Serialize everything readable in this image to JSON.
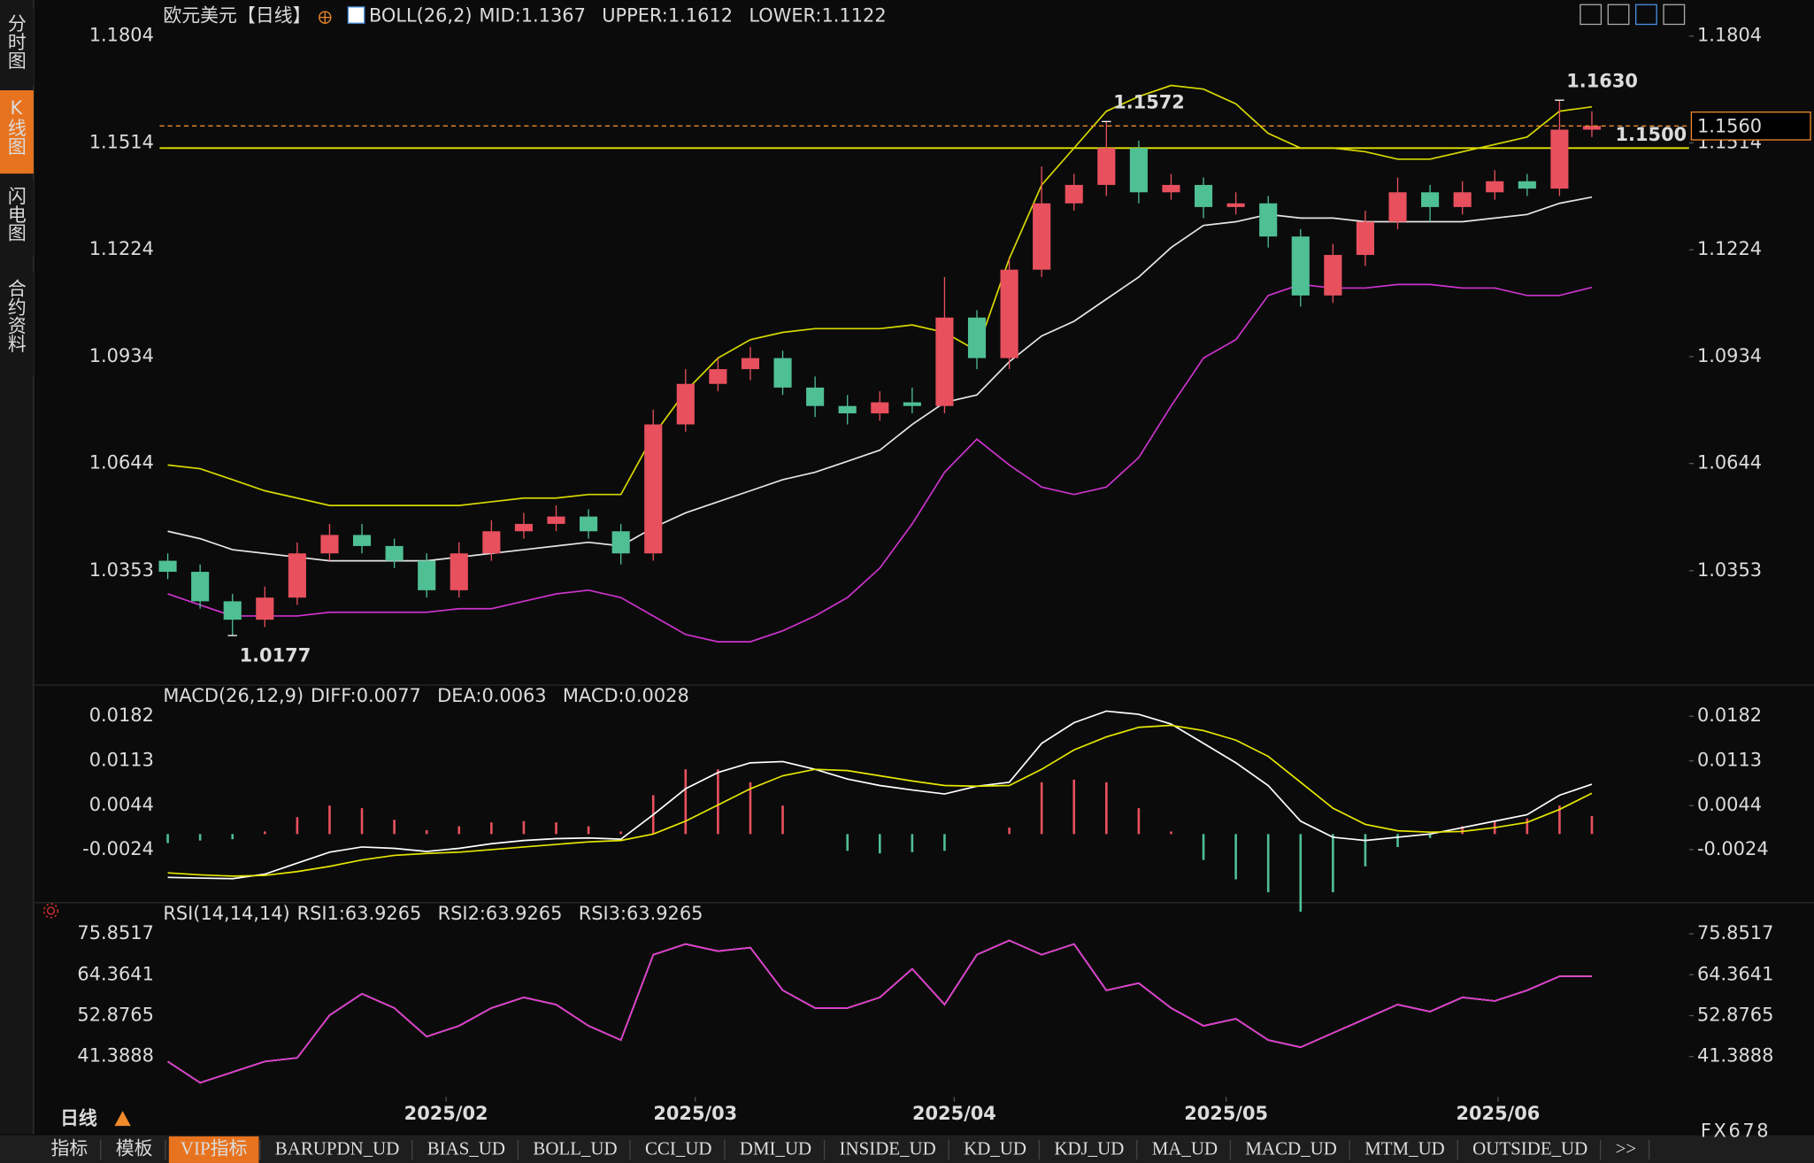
{
  "ui": {
    "sidebar": [
      "分时图",
      "K线图",
      "闪电图",
      "合约资料"
    ],
    "sidebar_active": 1,
    "period": "日线",
    "brand": "FX678",
    "tabs": [
      "指标",
      "模板",
      "VIP指标",
      "BARUPDN_UD",
      "BIAS_UD",
      "BOLL_UD",
      "CCI_UD",
      "DMI_UD",
      "INSIDE_UD",
      "KD_UD",
      "KDJ_UD",
      "MA_UD",
      "MACD_UD",
      "MTM_UD",
      "OUTSIDE_UD",
      ">>"
    ],
    "tab_active": 2
  },
  "chart_data": [
    {
      "type": "candlestick",
      "title": "欧元美元",
      "period": "【日线】",
      "indicator": "BOLL(26,2)",
      "up_color": "#e8505e",
      "down_color": "#4fbf94",
      "open": [
        1.038,
        1.035,
        1.027,
        1.022,
        1.028,
        1.04,
        1.045,
        1.042,
        1.038,
        1.03,
        1.04,
        1.046,
        1.048,
        1.05,
        1.046,
        1.04,
        1.075,
        1.086,
        1.09,
        1.093,
        1.085,
        1.08,
        1.078,
        1.081,
        1.08,
        1.104,
        1.093,
        1.117,
        1.135,
        1.14,
        1.15,
        1.138,
        1.14,
        1.134,
        1.135,
        1.126,
        1.11,
        1.121,
        1.13,
        1.138,
        1.134,
        1.138,
        1.141,
        1.139,
        1.155
      ],
      "high": [
        1.04,
        1.037,
        1.029,
        1.031,
        1.043,
        1.048,
        1.048,
        1.044,
        1.04,
        1.043,
        1.049,
        1.051,
        1.053,
        1.052,
        1.048,
        1.079,
        1.09,
        1.093,
        1.096,
        1.095,
        1.088,
        1.083,
        1.084,
        1.085,
        1.115,
        1.106,
        1.12,
        1.145,
        1.143,
        1.1572,
        1.152,
        1.143,
        1.142,
        1.138,
        1.137,
        1.128,
        1.124,
        1.133,
        1.142,
        1.14,
        1.141,
        1.144,
        1.143,
        1.163,
        1.16
      ],
      "low": [
        1.033,
        1.025,
        1.0177,
        1.02,
        1.026,
        1.038,
        1.04,
        1.036,
        1.028,
        1.028,
        1.038,
        1.044,
        1.046,
        1.044,
        1.037,
        1.038,
        1.073,
        1.084,
        1.087,
        1.083,
        1.077,
        1.075,
        1.076,
        1.078,
        1.078,
        1.09,
        1.09,
        1.115,
        1.133,
        1.137,
        1.135,
        1.136,
        1.131,
        1.132,
        1.123,
        1.107,
        1.108,
        1.118,
        1.128,
        1.13,
        1.132,
        1.136,
        1.137,
        1.137,
        1.153
      ],
      "close": [
        1.035,
        1.027,
        1.022,
        1.028,
        1.04,
        1.045,
        1.042,
        1.038,
        1.03,
        1.04,
        1.046,
        1.048,
        1.05,
        1.046,
        1.04,
        1.075,
        1.086,
        1.09,
        1.093,
        1.085,
        1.08,
        1.078,
        1.081,
        1.08,
        1.104,
        1.093,
        1.117,
        1.135,
        1.14,
        1.15,
        1.138,
        1.14,
        1.134,
        1.135,
        1.126,
        1.11,
        1.121,
        1.13,
        1.138,
        1.134,
        1.138,
        1.141,
        1.139,
        1.155,
        1.156
      ],
      "series": [
        {
          "name": "MID:1.1367",
          "color": "#e6e6e6",
          "values": [
            1.046,
            1.044,
            1.041,
            1.04,
            1.039,
            1.038,
            1.038,
            1.038,
            1.038,
            1.039,
            1.04,
            1.041,
            1.042,
            1.043,
            1.042,
            1.047,
            1.051,
            1.054,
            1.057,
            1.06,
            1.062,
            1.065,
            1.068,
            1.075,
            1.081,
            1.083,
            1.092,
            1.099,
            1.103,
            1.109,
            1.115,
            1.123,
            1.129,
            1.13,
            1.132,
            1.131,
            1.131,
            1.13,
            1.13,
            1.13,
            1.13,
            1.131,
            1.132,
            1.135,
            1.1367
          ]
        },
        {
          "name": "UPPER:1.1612",
          "color": "#d8d800",
          "values": [
            1.064,
            1.063,
            1.06,
            1.057,
            1.055,
            1.053,
            1.053,
            1.053,
            1.053,
            1.053,
            1.054,
            1.055,
            1.055,
            1.056,
            1.056,
            1.072,
            1.084,
            1.093,
            1.098,
            1.1,
            1.101,
            1.101,
            1.101,
            1.102,
            1.1,
            1.095,
            1.12,
            1.14,
            1.15,
            1.16,
            1.164,
            1.167,
            1.166,
            1.162,
            1.154,
            1.15,
            1.15,
            1.149,
            1.147,
            1.147,
            1.149,
            1.151,
            1.153,
            1.16,
            1.1612
          ]
        },
        {
          "name": "LOWER:1.1122",
          "color": "#cc33cc",
          "values": [
            1.029,
            1.026,
            1.023,
            1.023,
            1.023,
            1.024,
            1.024,
            1.024,
            1.024,
            1.025,
            1.025,
            1.027,
            1.029,
            1.03,
            1.028,
            1.023,
            1.018,
            1.016,
            1.016,
            1.019,
            1.023,
            1.028,
            1.036,
            1.048,
            1.062,
            1.071,
            1.064,
            1.058,
            1.056,
            1.058,
            1.066,
            1.08,
            1.093,
            1.098,
            1.11,
            1.113,
            1.112,
            1.112,
            1.113,
            1.113,
            1.112,
            1.112,
            1.11,
            1.11,
            1.1122
          ]
        }
      ],
      "annotations": [
        {
          "x": 29,
          "at": "high",
          "label": "1.1572",
          "color": "#e8505e"
        },
        {
          "x": 2,
          "at": "low",
          "label": "1.0177",
          "color": "#4fbf94"
        },
        {
          "x": 43,
          "at": "high",
          "label": "1.1630",
          "color": "#e8505e"
        }
      ],
      "hlines": [
        {
          "value": 1.15,
          "label": "1.1500",
          "color": "#e6e600"
        }
      ],
      "last_label": "1.1560",
      "last_color": "#f08a2a",
      "xlim": [
        0,
        44
      ],
      "ylim": [
        1.0096,
        1.1839
      ],
      "yticks": [
        1.1804,
        1.1514,
        1.1224,
        1.0934,
        1.0644,
        1.0353
      ]
    },
    {
      "type": "macd",
      "title": "MACD(26,12,9)",
      "series": [
        {
          "name": "DIFF:0.0077",
          "color": "#ffffff",
          "style": "line",
          "values": [
            -0.0067,
            -0.0068,
            -0.0069,
            -0.0062,
            -0.0045,
            -0.0028,
            -0.002,
            -0.0022,
            -0.0027,
            -0.0022,
            -0.0015,
            -0.001,
            -0.0007,
            -0.0006,
            -0.0008,
            0.003,
            0.007,
            0.0095,
            0.011,
            0.0112,
            0.01,
            0.0085,
            0.0075,
            0.0068,
            0.0062,
            0.0074,
            0.008,
            0.014,
            0.0172,
            0.019,
            0.0185,
            0.017,
            0.014,
            0.011,
            0.0075,
            0.002,
            -0.0005,
            -0.001,
            -0.0005,
            0,
            0.001,
            0.002,
            0.003,
            0.006,
            0.0077
          ]
        },
        {
          "name": "DEA:0.0063",
          "color": "#e6e600",
          "style": "line",
          "values": [
            -0.006,
            -0.0063,
            -0.0065,
            -0.0064,
            -0.0058,
            -0.005,
            -0.004,
            -0.0033,
            -0.003,
            -0.0028,
            -0.0024,
            -0.002,
            -0.0016,
            -0.0012,
            -0.001,
            0,
            0.002,
            0.0045,
            0.007,
            0.009,
            0.01,
            0.0098,
            0.009,
            0.0082,
            0.0075,
            0.0074,
            0.0075,
            0.01,
            0.013,
            0.015,
            0.0165,
            0.0168,
            0.016,
            0.0145,
            0.012,
            0.008,
            0.004,
            0.0015,
            0.0005,
            0.0003,
            0.0004,
            0.001,
            0.0018,
            0.0038,
            0.0063
          ]
        },
        {
          "name": "MACD:0.0028",
          "color": "#cc33cc",
          "style": "bar",
          "up_color": "#e8505e",
          "down_color": "#4fbf94",
          "values": [
            -0.0014,
            -0.001,
            -0.0008,
            0.0004,
            0.0026,
            0.0044,
            0.004,
            0.0022,
            0.0006,
            0.0012,
            0.0018,
            0.002,
            0.0018,
            0.0012,
            0.0004,
            0.006,
            0.01,
            0.01,
            0.008,
            0.0044,
            0,
            -0.0026,
            -0.003,
            -0.0028,
            -0.0026,
            0,
            0.001,
            0.008,
            0.0084,
            0.008,
            0.004,
            0.0004,
            -0.004,
            -0.007,
            -0.009,
            -0.012,
            -0.009,
            -0.005,
            -0.002,
            -0.0006,
            0.0012,
            0.002,
            0.0024,
            0.0044,
            0.0028
          ]
        }
      ],
      "xlim": [
        0,
        44
      ],
      "ylim": [
        -0.0097,
        0.0198
      ],
      "yticks": [
        0.0182,
        0.0113,
        0.0044,
        -0.0024
      ]
    },
    {
      "type": "line",
      "title": "RSI(14,14,14)",
      "series": [
        {
          "name": "RSI1:63.9265",
          "color": "#ffffff",
          "values": [
            40,
            34,
            37,
            40,
            41,
            53,
            59,
            55,
            47,
            50,
            55,
            58,
            56,
            50,
            46,
            70,
            73,
            71,
            72,
            60,
            55,
            55,
            58,
            66,
            56,
            70,
            74,
            70,
            73,
            60,
            62,
            55,
            50,
            52,
            46,
            44,
            48,
            52,
            56,
            54,
            58,
            57,
            60,
            63.93,
            63.9265
          ]
        },
        {
          "name": "RSI2:63.9265",
          "color": "#e6e600",
          "values": [
            40,
            34,
            37,
            40,
            41,
            53,
            59,
            55,
            47,
            50,
            55,
            58,
            56,
            50,
            46,
            70,
            73,
            71,
            72,
            60,
            55,
            55,
            58,
            66,
            56,
            70,
            74,
            70,
            73,
            60,
            62,
            55,
            50,
            52,
            46,
            44,
            48,
            52,
            56,
            54,
            58,
            57,
            60,
            63.93,
            63.9265
          ]
        },
        {
          "name": "RSI3:63.9265",
          "color": "#dd33dd",
          "values": [
            40,
            34,
            37,
            40,
            41,
            53,
            59,
            55,
            47,
            50,
            55,
            58,
            56,
            50,
            46,
            70,
            73,
            71,
            72,
            60,
            55,
            55,
            58,
            66,
            56,
            70,
            74,
            70,
            73,
            60,
            62,
            55,
            50,
            52,
            46,
            44,
            48,
            52,
            56,
            54,
            58,
            57,
            60,
            63.93,
            63.9265
          ]
        }
      ],
      "xlim": [
        0,
        44
      ],
      "ylim": [
        30.99,
        78.13
      ],
      "yticks": [
        75.8517,
        64.3641,
        52.8765,
        41.3888
      ],
      "xticks": [
        {
          "value": 8.6,
          "label": "2025/02"
        },
        {
          "value": 16.3,
          "label": "2025/03"
        },
        {
          "value": 24.3,
          "label": "2025/04"
        },
        {
          "value": 32.7,
          "label": "2025/05"
        },
        {
          "value": 41.1,
          "label": "2025/06"
        }
      ]
    }
  ]
}
